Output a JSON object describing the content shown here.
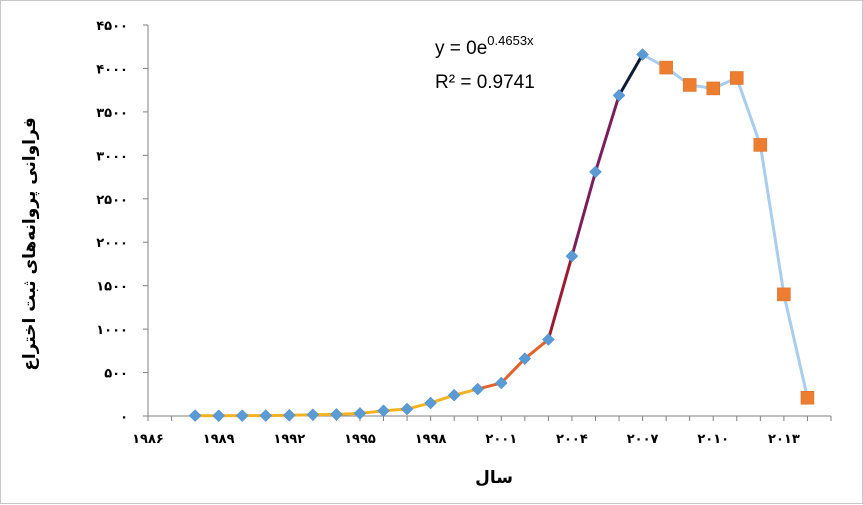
{
  "chart_data": {
    "type": "line",
    "ylabel": "فراوانی پروانه‌های ثبت اختراع",
    "xlabel": "سال",
    "xlim": [
      1986,
      2015
    ],
    "ylim": [
      0,
      4500
    ],
    "y_ticks": [
      "۰",
      "۵۰۰",
      "۱۰۰۰",
      "۱۵۰۰",
      "۲۰۰۰",
      "۲۵۰۰",
      "۳۰۰۰",
      "۳۵۰۰",
      "۴۰۰۰",
      "۴۵۰۰"
    ],
    "y_tick_values": [
      0,
      500,
      1000,
      1500,
      2000,
      2500,
      3000,
      3500,
      4000,
      4500
    ],
    "x_ticks": [
      "۱۹۸۶",
      "۱۹۸۹",
      "۱۹۹۲",
      "۱۹۹۵",
      "۱۹۹۸",
      "۲۰۰۱",
      "۲۰۰۴",
      "۲۰۰۷",
      "۲۰۱۰",
      "۲۰۱۳"
    ],
    "x_tick_values": [
      1986,
      1989,
      1992,
      1995,
      1998,
      2001,
      2004,
      2007,
      2010,
      2013
    ],
    "trendline_equation_prefix": "y = 0e",
    "trendline_equation_exponent": "0.4653x",
    "r_squared": "R² = 0.9741",
    "series": [
      {
        "marker": "diamond",
        "color": "#5b9bd5",
        "x": [
          1988,
          1989,
          1990,
          1991,
          1992,
          1993,
          1994,
          1995,
          1996,
          1997,
          1998,
          1999,
          2000,
          2001,
          2002,
          2003,
          2004,
          2005,
          2006,
          2007
        ],
        "y": [
          5,
          3,
          4,
          5,
          8,
          15,
          18,
          30,
          60,
          80,
          150,
          240,
          310,
          380,
          660,
          880,
          1840,
          2810,
          3690,
          4160
        ]
      },
      {
        "marker": "square",
        "color": "#ed7d31",
        "x": [
          2008,
          2009,
          2010,
          2011,
          2012,
          2013,
          2014
        ],
        "y": [
          4010,
          3810,
          3770,
          3890,
          3120,
          1400,
          210
        ]
      }
    ],
    "segment_colors": {
      "early": "#f5b323",
      "rise": "#e0622c",
      "mid": "#9b1b30",
      "late": "#7b1f5a",
      "top": "#101a33",
      "decline": "#a9cdef"
    }
  }
}
